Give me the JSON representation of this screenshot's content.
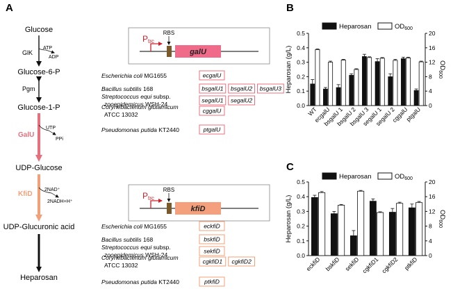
{
  "panel_a": {
    "label": "A",
    "pathway": {
      "metabolites": [
        "Glucose",
        "Glucose-6-P",
        "Glucose-1-P",
        "UDP-Glucose",
        "UDP-Glucuronic acid",
        "Heparosan"
      ],
      "enzymes": {
        "glk": "GlK",
        "pgm": "Pgm",
        "galu": "GalU",
        "kfid": "KfiD"
      },
      "cofactors": {
        "atp": "ATP",
        "adp": "ADP",
        "utp": "UTP",
        "ppi": "PPi",
        "nad": "2NAD⁺",
        "nadh": "2NADH+H⁺"
      },
      "colors": {
        "galu": "#e8707e",
        "kfid": "#f2a07a"
      }
    },
    "constructs": [
      {
        "promoter": "P",
        "promoter_sub": "trc",
        "rbs": "RBS",
        "gene": "galU",
        "gene_color": "#f06a8a",
        "box_color": "#e8707e",
        "species": [
          {
            "name": "Escherichia coli",
            "strain": "MG1655",
            "genes": [
              "ecgalU"
            ]
          },
          {
            "name": "Bacillus subtilis",
            "strain": "168",
            "genes": [
              "bsgalU1",
              "bsgalU2",
              "bsgalU3"
            ]
          },
          {
            "name": "Streptococcus equi",
            "strain": "subsp.",
            "line2": "zooepidemicus",
            "line2_strain": "WSH-24",
            "genes": [
              "segalU1",
              "segalU2"
            ]
          },
          {
            "name": "Corynebacterium glutamicum",
            "strain": "",
            "line2_strain": "ATCC 13032",
            "genes": [
              "cggalU"
            ]
          },
          {
            "name": "Pseudomonas putida",
            "strain": "KT2440",
            "genes": [
              "ptgalU"
            ]
          }
        ]
      },
      {
        "promoter": "P",
        "promoter_sub": "trc",
        "rbs": "RBS",
        "gene": "kfiD",
        "gene_color": "#f4a07c",
        "box_color": "#f2a07a",
        "species": [
          {
            "name": "Escherichia coli",
            "strain": "MG1655",
            "genes": [
              "eckfiD"
            ]
          },
          {
            "name": "Bacillus subtilis",
            "strain": "168",
            "genes": [
              "bskfiD"
            ]
          },
          {
            "name": "Streptococcus equi",
            "strain": "subsp.",
            "line2": "zooepidemicus",
            "line2_strain": "WSH-24",
            "genes": [
              "sekfiD"
            ]
          },
          {
            "name": "Corynebacterium glutamicum",
            "strain": "",
            "line2_strain": "ATCC 13032",
            "genes": [
              "cgkfiD1",
              "cgkfiD2"
            ]
          },
          {
            "name": "Pseudomonas putida",
            "strain": "KT2440",
            "genes": [
              "ptkfiD"
            ]
          }
        ]
      }
    ]
  },
  "chart_data": [
    {
      "panel": "B",
      "type": "bar",
      "categories": [
        "WT",
        "ecgalU",
        "bsgalU 1",
        "bsgalU 2",
        "bsgalU 3",
        "segalU 1",
        "segalU 2",
        "cggalU",
        "ptgalU"
      ],
      "series": [
        {
          "name": "Heparosan",
          "axis": "left",
          "color": "#111111",
          "values": [
            0.15,
            0.115,
            0.125,
            0.21,
            0.34,
            0.305,
            0.2,
            0.325,
            0.105
          ],
          "errors": [
            0.03,
            0.01,
            0.02,
            0.01,
            0.015,
            0.02,
            0.02,
            0.01,
            0.01
          ]
        },
        {
          "name": "OD",
          "name_sub": "600",
          "axis": "right",
          "color": "#ffffff",
          "values": [
            15.5,
            12.0,
            12.6,
            10.0,
            13.3,
            13.1,
            12.5,
            13.2,
            12.1
          ],
          "errors": [
            0.2,
            0.3,
            0.2,
            0.2,
            0.2,
            0.2,
            0.3,
            0.2,
            0.2
          ]
        }
      ],
      "ylabel": "Heparosan (g/L)",
      "ylabel_right": "OD",
      "ylabel_right_sub": "600",
      "ylim": [
        0,
        0.5
      ],
      "ylim_right": [
        0,
        20
      ],
      "yticks": [
        "0.0",
        "0.1",
        "0.2",
        "0.3",
        "0.4",
        "0.5"
      ],
      "yticks_right": [
        "0",
        "4",
        "8",
        "12",
        "16",
        "20"
      ],
      "legend": "top"
    },
    {
      "panel": "C",
      "type": "bar",
      "categories": [
        "eckfiD",
        "bskfiD",
        "sekfiD",
        "cgkfiD1",
        "cgkfiD2",
        "ptkfiD"
      ],
      "series": [
        {
          "name": "Heparosan",
          "axis": "left",
          "color": "#111111",
          "values": [
            0.395,
            0.285,
            0.135,
            0.37,
            0.295,
            0.325
          ],
          "errors": [
            0.015,
            0.015,
            0.035,
            0.015,
            0.025,
            0.025
          ]
        },
        {
          "name": "OD",
          "name_sub": "600",
          "axis": "right",
          "color": "#ffffff",
          "values": [
            17.1,
            13.7,
            17.5,
            11.7,
            14.2,
            14.4
          ],
          "errors": [
            0.3,
            0.2,
            0.2,
            0.2,
            0.3,
            0.3
          ]
        }
      ],
      "ylabel": "Heparosan (g/L)",
      "ylabel_right": "OD",
      "ylabel_right_sub": "600",
      "ylim": [
        0,
        0.5
      ],
      "ylim_right": [
        0,
        20
      ],
      "yticks": [
        "0.0",
        "0.1",
        "0.2",
        "0.3",
        "0.4",
        "0.5"
      ],
      "yticks_right": [
        "0",
        "4",
        "8",
        "12",
        "16",
        "20"
      ],
      "legend": "top"
    }
  ]
}
